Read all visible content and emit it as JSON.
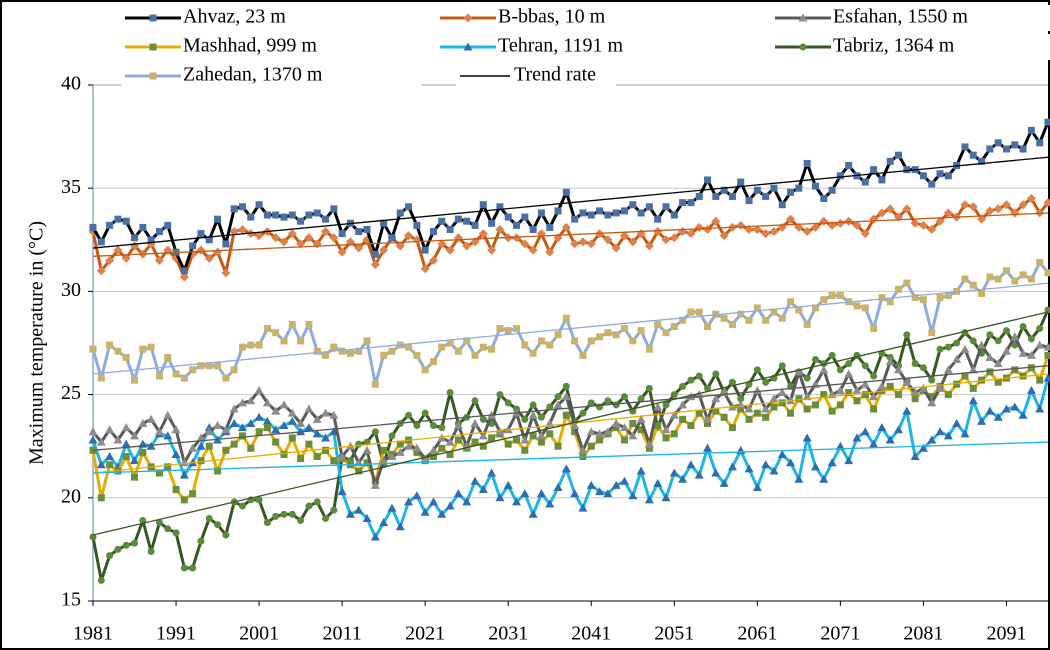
{
  "chart_data": {
    "type": "line",
    "y_label": "Maximum temperature in (°C)",
    "x": [
      1981,
      1982,
      1983,
      1984,
      1985,
      1986,
      1987,
      1988,
      1989,
      1990,
      1991,
      1992,
      1993,
      1994,
      1995,
      1996,
      1997,
      1998,
      1999,
      2000,
      2001,
      2002,
      2003,
      2004,
      2005,
      2006,
      2007,
      2008,
      2009,
      2010,
      2011,
      2012,
      2013,
      2014,
      2015,
      2016,
      2017,
      2018,
      2019,
      2020,
      2021,
      2022,
      2023,
      2024,
      2025,
      2026,
      2027,
      2028,
      2029,
      2030,
      2031,
      2032,
      2033,
      2034,
      2035,
      2036,
      2037,
      2038,
      2039,
      2040,
      2041,
      2042,
      2043,
      2044,
      2045,
      2046,
      2047,
      2048,
      2049,
      2050,
      2051,
      2052,
      2053,
      2054,
      2055,
      2056,
      2057,
      2058,
      2059,
      2060,
      2061,
      2062,
      2063,
      2064,
      2065,
      2066,
      2067,
      2068,
      2069,
      2070,
      2071,
      2072,
      2073,
      2074,
      2075,
      2076,
      2077,
      2078,
      2079,
      2080,
      2081,
      2082,
      2083,
      2084,
      2085,
      2086,
      2087,
      2088,
      2089,
      2090,
      2091,
      2092,
      2093,
      2094,
      2095,
      2096
    ],
    "xlim": [
      1981,
      2096
    ],
    "xticks": [
      1981,
      1991,
      2001,
      2011,
      2021,
      2031,
      2041,
      2051,
      2061,
      2071,
      2081,
      2091
    ],
    "ylim": [
      15,
      40
    ],
    "yticks": [
      15,
      20,
      25,
      30,
      35,
      40
    ],
    "grid": true,
    "trend_legend": {
      "name": "Trend rate",
      "color": "#000000"
    },
    "series": [
      {
        "name": "Ahvaz, 23 m",
        "color": "#000000",
        "marker_color": "#4a6fa5",
        "marker": "square",
        "trend": [
          32.1,
          36.5
        ],
        "values": [
          33.1,
          32.4,
          33.2,
          33.5,
          33.4,
          32.6,
          33.1,
          32.5,
          32.9,
          33.2,
          31.9,
          31.0,
          32.2,
          32.8,
          32.5,
          33.5,
          32.3,
          34.0,
          34.1,
          33.6,
          34.2,
          33.7,
          33.7,
          33.6,
          33.7,
          33.4,
          33.7,
          33.8,
          33.5,
          34.0,
          32.8,
          33.3,
          32.9,
          33.0,
          31.8,
          33.3,
          32.6,
          33.8,
          34.1,
          33.2,
          32.0,
          32.9,
          33.4,
          33.0,
          33.5,
          33.4,
          33.2,
          34.2,
          33.3,
          34.1,
          33.6,
          33.2,
          33.6,
          33.0,
          33.8,
          33.1,
          33.9,
          34.8,
          33.5,
          33.8,
          33.7,
          33.9,
          33.7,
          33.8,
          33.9,
          34.2,
          33.8,
          34.1,
          33.5,
          34.1,
          33.7,
          34.3,
          34.3,
          34.6,
          35.4,
          34.6,
          34.9,
          34.6,
          35.3,
          34.4,
          34.9,
          34.6,
          35.0,
          34.2,
          34.8,
          35.0,
          36.2,
          35.1,
          34.5,
          34.9,
          35.6,
          36.1,
          35.6,
          35.3,
          35.9,
          35.4,
          36.3,
          36.6,
          35.9,
          35.9,
          35.6,
          35.2,
          35.7,
          35.6,
          36.1,
          37.0,
          36.6,
          36.3,
          36.9,
          37.2,
          36.9,
          37.1,
          36.9,
          37.8,
          37.2,
          38.2
        ]
      },
      {
        "name": "B-bbas, 10 m",
        "color": "#c55a11",
        "marker_color": "#e0814c",
        "marker": "diamond",
        "trend": [
          31.7,
          33.8
        ],
        "values": [
          32.9,
          31.0,
          31.5,
          32.0,
          31.6,
          32.2,
          31.8,
          32.3,
          31.5,
          32.0,
          31.6,
          30.7,
          31.8,
          32.0,
          31.6,
          31.9,
          30.9,
          32.9,
          33.0,
          32.8,
          32.7,
          32.9,
          32.6,
          32.4,
          32.8,
          32.3,
          32.6,
          32.3,
          32.9,
          32.6,
          31.9,
          32.4,
          32.1,
          32.5,
          31.3,
          32.0,
          32.6,
          32.2,
          32.7,
          32.5,
          31.1,
          31.5,
          32.3,
          32.0,
          32.6,
          32.2,
          32.4,
          32.8,
          32.0,
          33.0,
          32.6,
          32.6,
          32.3,
          32.0,
          32.8,
          31.9,
          32.6,
          33.1,
          32.3,
          32.4,
          32.3,
          32.8,
          32.5,
          32.1,
          32.7,
          32.4,
          32.8,
          32.2,
          32.9,
          32.5,
          32.6,
          32.9,
          32.8,
          33.1,
          33.0,
          33.4,
          32.7,
          33.1,
          33.2,
          33.0,
          33.0,
          32.8,
          32.9,
          33.1,
          33.5,
          33.1,
          32.9,
          33.1,
          33.4,
          33.2,
          33.3,
          33.4,
          33.2,
          32.8,
          33.5,
          33.8,
          34.0,
          33.6,
          34.0,
          33.3,
          33.2,
          33.0,
          33.4,
          33.8,
          33.6,
          34.2,
          34.1,
          33.5,
          33.9,
          34.0,
          34.2,
          33.8,
          34.2,
          34.5,
          33.8,
          34.3
        ]
      },
      {
        "name": "Esfahan, 1550 m",
        "color": "#595959",
        "marker_color": "#8c8c8c",
        "marker": "triangle",
        "trend": [
          22.3,
          26.4
        ],
        "values": [
          23.2,
          22.7,
          23.3,
          22.8,
          23.4,
          23.0,
          23.6,
          23.8,
          23.2,
          24.0,
          23.3,
          21.7,
          22.4,
          22.9,
          23.2,
          23.5,
          23.3,
          24.3,
          24.6,
          24.7,
          25.2,
          24.6,
          24.2,
          24.5,
          24.1,
          23.6,
          24.3,
          23.8,
          24.1,
          24.0,
          22.0,
          22.5,
          21.7,
          22.3,
          20.6,
          21.8,
          22.0,
          22.2,
          22.5,
          22.4,
          21.9,
          22.3,
          22.9,
          22.7,
          23.5,
          22.5,
          23.6,
          23.0,
          24.0,
          23.2,
          23.3,
          24.1,
          22.8,
          24.0,
          23.0,
          23.6,
          24.5,
          24.9,
          23.5,
          22.3,
          23.2,
          23.1,
          23.2,
          23.6,
          23.4,
          23.0,
          23.8,
          22.6,
          24.4,
          23.3,
          24.0,
          24.5,
          24.9,
          25.0,
          23.8,
          24.8,
          25.1,
          24.4,
          24.5,
          24.3,
          25.2,
          24.3,
          24.8,
          25.1,
          24.7,
          26.1,
          24.9,
          25.5,
          26.2,
          25.0,
          25.2,
          26.0,
          25.2,
          25.5,
          24.9,
          25.4,
          26.6,
          26.2,
          25.6,
          25.1,
          25.3,
          24.6,
          25.3,
          26.2,
          26.7,
          27.2,
          26.2,
          27.4,
          26.8,
          26.5,
          27.1,
          27.8,
          27.0,
          26.9,
          27.4,
          27.3
        ]
      },
      {
        "name": "Mashhad, 999 m",
        "color": "#e6ac00",
        "marker_color": "#6b8e3a",
        "marker": "square",
        "trend": [
          21.2,
          26.0
        ],
        "values": [
          22.3,
          20.0,
          21.6,
          21.3,
          22.0,
          21.0,
          22.2,
          21.5,
          21.2,
          21.5,
          20.4,
          19.9,
          20.2,
          21.8,
          22.5,
          21.3,
          22.3,
          22.6,
          23.0,
          22.4,
          23.2,
          23.4,
          22.7,
          22.1,
          22.9,
          21.9,
          22.6,
          22.0,
          22.3,
          21.8,
          21.9,
          21.6,
          21.3,
          21.7,
          20.8,
          22.3,
          22.1,
          22.6,
          22.8,
          22.2,
          21.8,
          22.0,
          22.4,
          22.1,
          22.8,
          22.4,
          22.7,
          22.5,
          22.9,
          23.1,
          22.6,
          22.8,
          22.3,
          23.0,
          22.7,
          23.1,
          22.5,
          24.0,
          23.2,
          22.0,
          22.5,
          22.8,
          23.1,
          23.4,
          22.8,
          23.6,
          23.3,
          22.4,
          23.5,
          22.9,
          23.1,
          23.8,
          23.5,
          24.1,
          23.6,
          24.2,
          23.9,
          23.4,
          24.3,
          23.8,
          24.1,
          23.9,
          24.4,
          24.6,
          24.1,
          24.8,
          24.3,
          24.5,
          25.0,
          24.2,
          24.5,
          25.1,
          24.7,
          25.0,
          24.3,
          25.2,
          25.4,
          25.0,
          25.6,
          24.8,
          25.2,
          24.9,
          25.4,
          25.0,
          25.5,
          25.9,
          25.3,
          25.7,
          26.1,
          25.6,
          25.8,
          26.2,
          25.9,
          26.3,
          25.7,
          26.9
        ]
      },
      {
        "name": "Tehran, 1191 m",
        "color": "#1eb4e8",
        "marker_color": "#2f6db0",
        "marker": "triangle",
        "trend": [
          21.2,
          22.7
        ],
        "values": [
          22.8,
          21.6,
          22.0,
          21.5,
          22.6,
          21.8,
          22.6,
          22.5,
          23.1,
          23.0,
          22.1,
          21.1,
          21.7,
          22.5,
          23.4,
          22.8,
          23.2,
          23.6,
          23.4,
          23.6,
          23.9,
          23.7,
          23.3,
          23.5,
          23.7,
          23.2,
          23.4,
          23.1,
          22.9,
          23.2,
          20.3,
          19.2,
          19.4,
          19.0,
          18.1,
          18.8,
          19.5,
          18.6,
          19.8,
          20.1,
          19.3,
          19.8,
          19.2,
          19.6,
          20.2,
          19.8,
          20.8,
          20.4,
          21.2,
          20.0,
          20.6,
          19.8,
          20.2,
          19.2,
          20.2,
          19.7,
          20.5,
          21.4,
          20.2,
          19.5,
          20.6,
          20.3,
          20.2,
          20.6,
          20.8,
          20.1,
          21.3,
          19.9,
          20.7,
          20.0,
          21.2,
          20.9,
          21.6,
          21.1,
          22.4,
          21.2,
          20.7,
          21.5,
          22.3,
          21.4,
          20.5,
          21.6,
          21.3,
          22.1,
          21.7,
          20.9,
          22.9,
          21.5,
          20.9,
          21.7,
          22.5,
          21.8,
          22.9,
          23.2,
          22.6,
          23.4,
          22.8,
          23.3,
          24.2,
          22.0,
          22.4,
          22.8,
          23.2,
          23.0,
          23.6,
          23.1,
          24.7,
          23.7,
          24.2,
          23.9,
          24.3,
          24.4,
          24.0,
          25.2,
          24.3,
          25.8
        ]
      },
      {
        "name": "Tabriz, 1364 m",
        "color": "#375623",
        "marker_color": "#5a8a3a",
        "marker": "circle",
        "trend": [
          18.2,
          29.0
        ],
        "values": [
          18.1,
          16.0,
          17.2,
          17.5,
          17.7,
          17.8,
          18.9,
          17.4,
          18.8,
          18.5,
          18.3,
          16.6,
          16.6,
          17.9,
          19.0,
          18.7,
          18.2,
          19.8,
          19.6,
          19.9,
          19.9,
          18.8,
          19.1,
          19.2,
          19.2,
          18.9,
          19.6,
          19.8,
          19.0,
          19.4,
          22.0,
          21.8,
          22.6,
          22.7,
          23.2,
          21.6,
          23.0,
          23.6,
          24.0,
          23.5,
          24.1,
          23.5,
          23.4,
          25.1,
          23.6,
          23.9,
          24.7,
          23.8,
          23.6,
          25.0,
          24.6,
          24.3,
          23.8,
          24.5,
          23.9,
          24.4,
          24.9,
          25.4,
          23.7,
          24.1,
          24.6,
          24.4,
          24.7,
          24.5,
          24.9,
          24.2,
          24.8,
          25.3,
          23.4,
          24.5,
          25.0,
          25.4,
          25.7,
          25.9,
          25.3,
          26.0,
          25.1,
          25.6,
          24.8,
          25.5,
          26.2,
          25.6,
          25.8,
          26.4,
          25.4,
          26.1,
          25.8,
          26.7,
          26.5,
          26.9,
          26.2,
          26.5,
          26.9,
          26.4,
          25.9,
          27.0,
          26.8,
          26.4,
          27.9,
          26.5,
          26.3,
          25.7,
          27.2,
          27.3,
          27.5,
          28.0,
          27.6,
          27.0,
          27.9,
          27.6,
          28.1,
          27.4,
          28.3,
          27.7,
          28.2,
          29.1
        ]
      },
      {
        "name": "Zahedan, 1370 m",
        "color": "#8faadc",
        "marker_color": "#c9b36a",
        "marker": "square",
        "trend": [
          26.0,
          30.4
        ],
        "values": [
          27.2,
          25.8,
          27.4,
          27.1,
          26.8,
          25.7,
          27.2,
          27.3,
          25.9,
          26.8,
          26.0,
          25.8,
          26.2,
          26.4,
          26.4,
          26.4,
          25.8,
          26.2,
          27.3,
          27.4,
          27.4,
          28.2,
          28.0,
          27.6,
          28.4,
          27.6,
          28.4,
          27.1,
          26.9,
          27.3,
          27.1,
          27.0,
          27.1,
          27.6,
          25.5,
          26.9,
          27.1,
          27.4,
          27.3,
          26.9,
          26.2,
          26.6,
          27.3,
          27.5,
          27.1,
          27.6,
          26.9,
          27.3,
          27.2,
          28.2,
          28.1,
          28.2,
          27.4,
          27.0,
          27.6,
          27.4,
          27.9,
          28.7,
          27.6,
          26.9,
          27.6,
          27.8,
          28.0,
          27.9,
          28.2,
          27.6,
          28.1,
          27.2,
          28.4,
          28.0,
          28.3,
          28.6,
          29.0,
          29.0,
          28.3,
          28.9,
          28.7,
          28.4,
          28.9,
          28.6,
          29.2,
          28.6,
          29.0,
          28.7,
          29.5,
          29.1,
          28.4,
          29.2,
          29.6,
          29.8,
          29.8,
          29.5,
          29.3,
          29.2,
          28.2,
          29.7,
          29.5,
          30.1,
          30.4,
          29.7,
          29.6,
          28.0,
          29.7,
          29.8,
          30.0,
          30.6,
          30.3,
          29.9,
          30.7,
          30.6,
          31.0,
          30.5,
          30.8,
          30.6,
          31.4,
          30.9
        ]
      }
    ]
  }
}
